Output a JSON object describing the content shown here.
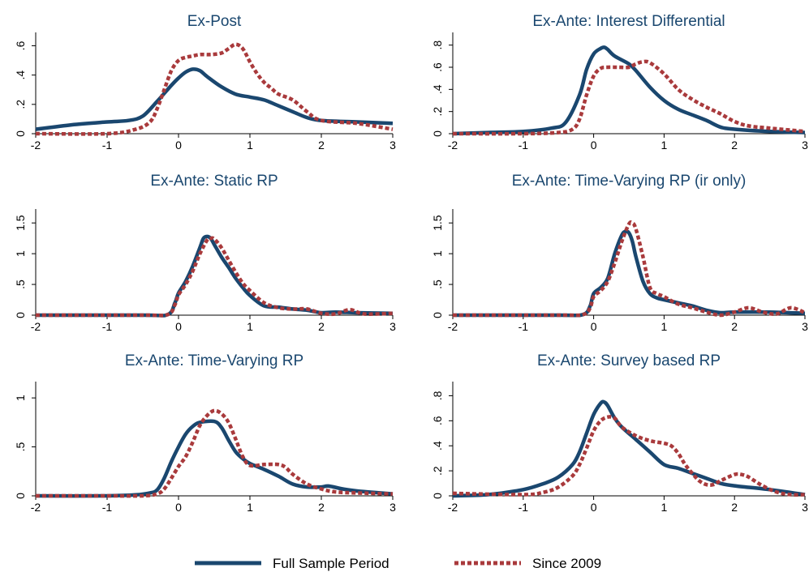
{
  "colors": {
    "full": "#1a476f",
    "since": "#a93a3c",
    "title": "#1a476f"
  },
  "legend": {
    "items": [
      {
        "label": "Full Sample Period",
        "style": "solid",
        "color": "#1a476f"
      },
      {
        "label": "Since 2009",
        "style": "dashed",
        "color": "#a93a3c"
      }
    ]
  },
  "chart_data": [
    {
      "type": "line",
      "title": "Ex-Post",
      "xlim": [
        -2,
        3
      ],
      "ylim": [
        0,
        0.68
      ],
      "xticks": [
        -2,
        -1,
        0,
        1,
        2,
        3
      ],
      "xticklabels": [
        "-2",
        "-1",
        "0",
        "1",
        "2",
        "3"
      ],
      "yticks": [
        0,
        0.2,
        0.4,
        0.6
      ],
      "yticklabels": [
        "0",
        ".2",
        ".4",
        ".6"
      ],
      "series": [
        {
          "name": "Full Sample Period",
          "x": [
            -2,
            -1.5,
            -1,
            -0.7,
            -0.5,
            -0.3,
            -0.1,
            0,
            0.1,
            0.2,
            0.3,
            0.4,
            0.6,
            0.8,
            1.0,
            1.2,
            1.4,
            1.6,
            1.8,
            2.0,
            2.5,
            3.0
          ],
          "y": [
            0.03,
            0.06,
            0.08,
            0.09,
            0.12,
            0.22,
            0.33,
            0.38,
            0.42,
            0.44,
            0.43,
            0.39,
            0.32,
            0.27,
            0.25,
            0.23,
            0.19,
            0.15,
            0.11,
            0.09,
            0.08,
            0.07
          ]
        },
        {
          "name": "Since 2009",
          "x": [
            -2,
            -1,
            -0.6,
            -0.4,
            -0.3,
            -0.2,
            -0.1,
            0,
            0.1,
            0.2,
            0.3,
            0.45,
            0.6,
            0.7,
            0.8,
            0.9,
            1.0,
            1.1,
            1.2,
            1.3,
            1.4,
            1.6,
            1.8,
            2.0,
            2.5,
            3.0
          ],
          "y": [
            0.0,
            0.0,
            0.03,
            0.08,
            0.17,
            0.3,
            0.43,
            0.5,
            0.52,
            0.53,
            0.54,
            0.54,
            0.55,
            0.58,
            0.61,
            0.58,
            0.49,
            0.41,
            0.35,
            0.31,
            0.27,
            0.23,
            0.15,
            0.09,
            0.07,
            0.03
          ]
        }
      ]
    },
    {
      "type": "line",
      "title": "Ex-Ante: Interest Differential",
      "xlim": [
        -2,
        3
      ],
      "ylim": [
        0,
        0.9
      ],
      "xticks": [
        -2,
        -1,
        0,
        1,
        2,
        3
      ],
      "xticklabels": [
        "-2",
        "-1",
        "0",
        "1",
        "2",
        "3"
      ],
      "yticks": [
        0,
        0.2,
        0.4,
        0.6,
        0.8
      ],
      "yticklabels": [
        "0",
        ".2",
        ".4",
        ".6",
        ".8"
      ],
      "series": [
        {
          "name": "Full Sample Period",
          "x": [
            -2,
            -1.5,
            -1,
            -0.6,
            -0.4,
            -0.2,
            -0.1,
            0,
            0.1,
            0.15,
            0.2,
            0.3,
            0.5,
            0.6,
            0.8,
            1.0,
            1.2,
            1.4,
            1.6,
            1.8,
            2.0,
            2.5,
            3.0
          ],
          "y": [
            0.0,
            0.01,
            0.02,
            0.05,
            0.1,
            0.35,
            0.58,
            0.72,
            0.77,
            0.78,
            0.76,
            0.7,
            0.63,
            0.57,
            0.42,
            0.3,
            0.22,
            0.17,
            0.12,
            0.06,
            0.04,
            0.02,
            0.01
          ]
        },
        {
          "name": "Since 2009",
          "x": [
            -2,
            -1,
            -0.5,
            -0.3,
            -0.2,
            -0.1,
            0,
            0.1,
            0.2,
            0.35,
            0.5,
            0.6,
            0.7,
            0.8,
            1.0,
            1.2,
            1.4,
            1.6,
            1.8,
            2.0,
            2.2,
            2.5,
            3.0
          ],
          "y": [
            0.0,
            0.0,
            0.01,
            0.04,
            0.13,
            0.35,
            0.52,
            0.59,
            0.6,
            0.6,
            0.6,
            0.63,
            0.65,
            0.64,
            0.54,
            0.4,
            0.31,
            0.24,
            0.18,
            0.11,
            0.07,
            0.05,
            0.02
          ]
        }
      ]
    },
    {
      "type": "line",
      "title": "Ex-Ante: Static RP",
      "xlim": [
        -2,
        3
      ],
      "ylim": [
        0,
        1.7
      ],
      "xticks": [
        -2,
        -1,
        0,
        1,
        2,
        3
      ],
      "xticklabels": [
        "-2",
        "-1",
        "0",
        "1",
        "2",
        "3"
      ],
      "yticks": [
        0,
        0.5,
        1.0,
        1.5
      ],
      "yticklabels": [
        "0",
        ".5",
        "1",
        "1.5"
      ],
      "series": [
        {
          "name": "Full Sample Period",
          "x": [
            -2,
            -0.5,
            -0.15,
            -0.05,
            0,
            0.1,
            0.2,
            0.3,
            0.35,
            0.4,
            0.45,
            0.5,
            0.6,
            0.7,
            0.8,
            0.9,
            1.0,
            1.2,
            1.4,
            1.6,
            1.8,
            2.0,
            2.2,
            2.5,
            3.0
          ],
          "y": [
            0.0,
            0.0,
            0.01,
            0.2,
            0.36,
            0.55,
            0.8,
            1.1,
            1.25,
            1.28,
            1.25,
            1.15,
            0.95,
            0.78,
            0.6,
            0.45,
            0.32,
            0.15,
            0.13,
            0.1,
            0.08,
            0.04,
            0.05,
            0.04,
            0.03
          ]
        },
        {
          "name": "Since 2009",
          "x": [
            -2,
            -0.5,
            -0.15,
            -0.05,
            0,
            0.1,
            0.2,
            0.3,
            0.4,
            0.45,
            0.5,
            0.6,
            0.7,
            0.8,
            0.9,
            1.0,
            1.2,
            1.4,
            1.6,
            1.8,
            2.0,
            2.2,
            2.4,
            2.6,
            3.0
          ],
          "y": [
            0.0,
            0.0,
            0.01,
            0.17,
            0.33,
            0.5,
            0.72,
            1.0,
            1.22,
            1.25,
            1.24,
            1.1,
            0.9,
            0.7,
            0.52,
            0.4,
            0.2,
            0.12,
            0.1,
            0.1,
            0.03,
            0.02,
            0.09,
            0.02,
            0.03
          ]
        }
      ]
    },
    {
      "type": "line",
      "title": "Ex-Ante: Time-Varying RP (ir only)",
      "xlim": [
        -2,
        3
      ],
      "ylim": [
        0,
        1.7
      ],
      "xticks": [
        -2,
        -1,
        0,
        1,
        2,
        3
      ],
      "xticklabels": [
        "-2",
        "-1",
        "0",
        "1",
        "2",
        "3"
      ],
      "yticks": [
        0,
        0.5,
        1.0,
        1.5
      ],
      "yticklabels": [
        "0",
        ".5",
        "1",
        "1.5"
      ],
      "series": [
        {
          "name": "Full Sample Period",
          "x": [
            -2,
            -0.5,
            -0.15,
            -0.05,
            0,
            0.1,
            0.2,
            0.3,
            0.4,
            0.45,
            0.5,
            0.55,
            0.6,
            0.7,
            0.8,
            0.9,
            1.0,
            1.2,
            1.4,
            1.6,
            1.8,
            2.0,
            2.5,
            3.0
          ],
          "y": [
            0.0,
            0.0,
            0.01,
            0.15,
            0.35,
            0.45,
            0.6,
            1.0,
            1.3,
            1.36,
            1.34,
            1.2,
            0.95,
            0.55,
            0.35,
            0.28,
            0.25,
            0.2,
            0.15,
            0.08,
            0.04,
            0.05,
            0.05,
            0.03
          ]
        },
        {
          "name": "Since 2009",
          "x": [
            -2,
            -0.5,
            -0.15,
            -0.05,
            0,
            0.1,
            0.2,
            0.3,
            0.4,
            0.5,
            0.55,
            0.6,
            0.7,
            0.8,
            0.9,
            1.0,
            1.2,
            1.4,
            1.6,
            1.8,
            2.0,
            2.2,
            2.4,
            2.6,
            2.8,
            3.0
          ],
          "y": [
            0.0,
            0.0,
            0.01,
            0.12,
            0.3,
            0.4,
            0.55,
            0.85,
            1.2,
            1.48,
            1.5,
            1.4,
            0.95,
            0.45,
            0.35,
            0.3,
            0.18,
            0.12,
            0.05,
            0.0,
            0.05,
            0.12,
            0.05,
            0.02,
            0.12,
            0.04
          ]
        }
      ]
    },
    {
      "type": "line",
      "title": "Ex-Ante: Time-Varying RP",
      "xlim": [
        -2,
        3
      ],
      "ylim": [
        0,
        1.15
      ],
      "xticks": [
        -2,
        -1,
        0,
        1,
        2,
        3
      ],
      "xticklabels": [
        "-2",
        "-1",
        "0",
        "1",
        "2",
        "3"
      ],
      "yticks": [
        0,
        0.5,
        1.0
      ],
      "yticklabels": [
        "0",
        ".5",
        "1"
      ],
      "series": [
        {
          "name": "Full Sample Period",
          "x": [
            -2,
            -1,
            -0.6,
            -0.4,
            -0.3,
            -0.2,
            -0.1,
            0,
            0.1,
            0.2,
            0.3,
            0.5,
            0.6,
            0.7,
            0.8,
            0.9,
            1.0,
            1.2,
            1.4,
            1.6,
            1.8,
            2.0,
            2.1,
            2.3,
            2.5,
            3.0
          ],
          "y": [
            0.0,
            0.0,
            0.01,
            0.03,
            0.06,
            0.18,
            0.35,
            0.5,
            0.63,
            0.71,
            0.75,
            0.76,
            0.7,
            0.57,
            0.45,
            0.38,
            0.33,
            0.27,
            0.2,
            0.12,
            0.09,
            0.09,
            0.1,
            0.07,
            0.05,
            0.02
          ]
        },
        {
          "name": "Since 2009",
          "x": [
            -2,
            -1,
            -0.5,
            -0.3,
            -0.2,
            -0.1,
            0,
            0.1,
            0.2,
            0.3,
            0.4,
            0.5,
            0.6,
            0.7,
            0.8,
            0.9,
            1.0,
            1.2,
            1.4,
            1.5,
            1.6,
            1.8,
            2.0,
            2.2,
            2.5,
            3.0
          ],
          "y": [
            0.0,
            0.0,
            0.0,
            0.02,
            0.07,
            0.18,
            0.3,
            0.4,
            0.55,
            0.72,
            0.82,
            0.87,
            0.84,
            0.75,
            0.58,
            0.4,
            0.31,
            0.32,
            0.32,
            0.29,
            0.22,
            0.12,
            0.07,
            0.04,
            0.03,
            0.02
          ]
        }
      ]
    },
    {
      "type": "line",
      "title": "Ex-Ante: Survey based RP",
      "xlim": [
        -2,
        3
      ],
      "ylim": [
        0,
        0.9
      ],
      "xticks": [
        -2,
        -1,
        0,
        1,
        2,
        3
      ],
      "xticklabels": [
        "-2",
        "-1",
        "0",
        "1",
        "2",
        "3"
      ],
      "yticks": [
        0,
        0.2,
        0.4,
        0.6,
        0.8
      ],
      "yticklabels": [
        "0",
        ".2",
        ".4",
        ".6",
        ".8"
      ],
      "series": [
        {
          "name": "Full Sample Period",
          "x": [
            -2,
            -1.5,
            -1,
            -0.7,
            -0.5,
            -0.3,
            -0.2,
            -0.1,
            0,
            0.1,
            0.15,
            0.2,
            0.3,
            0.4,
            0.6,
            0.8,
            1.0,
            1.2,
            1.4,
            1.6,
            1.8,
            2.0,
            2.5,
            3.0
          ],
          "y": [
            0.0,
            0.01,
            0.05,
            0.1,
            0.15,
            0.25,
            0.35,
            0.5,
            0.65,
            0.74,
            0.75,
            0.72,
            0.62,
            0.55,
            0.45,
            0.35,
            0.25,
            0.22,
            0.18,
            0.14,
            0.1,
            0.08,
            0.05,
            0.01
          ]
        },
        {
          "name": "Since 2009",
          "x": [
            -2,
            -1,
            -0.7,
            -0.5,
            -0.3,
            -0.2,
            -0.1,
            0,
            0.1,
            0.2,
            0.3,
            0.4,
            0.6,
            0.8,
            1.0,
            1.1,
            1.2,
            1.3,
            1.4,
            1.5,
            1.6,
            1.7,
            1.8,
            2.0,
            2.1,
            2.2,
            2.4,
            2.6,
            2.8,
            3.0
          ],
          "y": [
            0.02,
            0.01,
            0.03,
            0.07,
            0.16,
            0.25,
            0.38,
            0.52,
            0.6,
            0.63,
            0.62,
            0.55,
            0.48,
            0.44,
            0.42,
            0.4,
            0.34,
            0.25,
            0.18,
            0.12,
            0.09,
            0.09,
            0.12,
            0.17,
            0.17,
            0.15,
            0.08,
            0.03,
            0.01,
            0.01
          ]
        }
      ]
    }
  ]
}
